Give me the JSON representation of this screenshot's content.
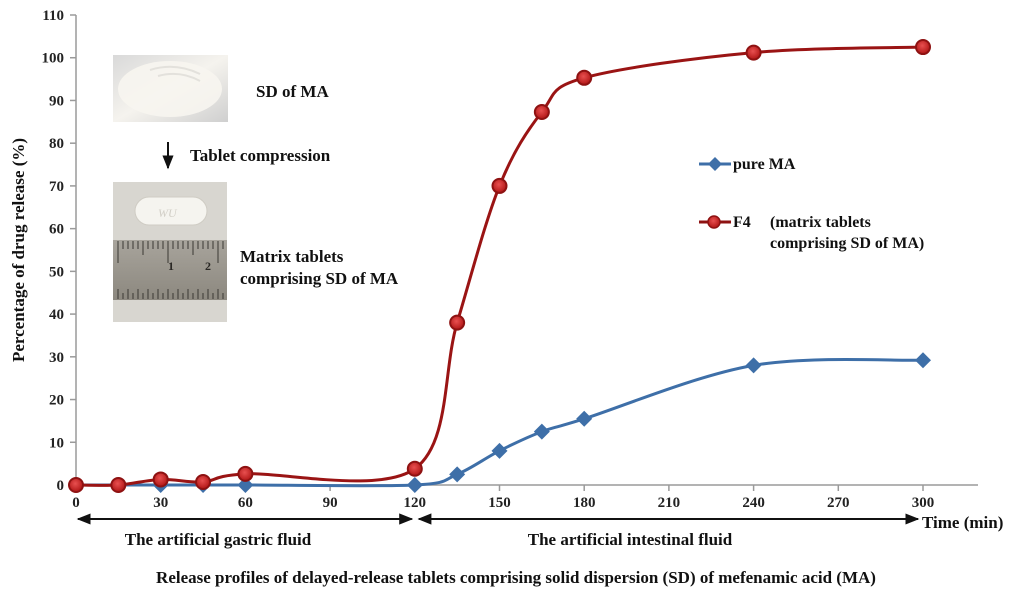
{
  "chart_data": {
    "type": "line",
    "title": "Release profiles of delayed-release tablets comprising solid dispersion (SD) of mefenamic acid (MA)",
    "xlabel": "Time (min)",
    "ylabel": "Percentage of drug release (%)",
    "xlim": [
      0,
      300
    ],
    "ylim": [
      0,
      110
    ],
    "xticks": [
      0,
      30,
      60,
      90,
      120,
      150,
      180,
      210,
      240,
      270,
      300
    ],
    "yticks": [
      0,
      10,
      20,
      30,
      40,
      50,
      60,
      70,
      80,
      90,
      100,
      110
    ],
    "grid": false,
    "legend_position": "right",
    "series": [
      {
        "name": "pure MA",
        "color": "#3e6fa8",
        "marker": "diamond",
        "x": [
          0,
          15,
          30,
          45,
          60,
          120,
          135,
          150,
          165,
          180,
          240,
          300
        ],
        "y": [
          0,
          0,
          0,
          0,
          0,
          0,
          2.5,
          8,
          12.5,
          15.5,
          28,
          29.2
        ]
      },
      {
        "name": "F4",
        "name_detail": "(matrix tablets comprising SD of MA)",
        "name_detail_lines": [
          "(matrix tablets",
          "comprising SD of MA)"
        ],
        "color": "#b81c1c",
        "marker": "circle",
        "x": [
          0,
          15,
          30,
          45,
          60,
          120,
          135,
          150,
          165,
          180,
          240,
          300
        ],
        "y": [
          0,
          0,
          1.3,
          0.7,
          2.6,
          3.8,
          38,
          70,
          87.3,
          95.3,
          101.2,
          102.5
        ]
      }
    ],
    "annotations": {
      "phase_gastric": "The artificial gastric fluid",
      "phase_intestinal": "The artificial intestinal fluid",
      "powder_label": "SD of MA",
      "process_label": "Tablet compression",
      "tablet_label_lines": [
        "Matrix tablets",
        "comprising SD of MA"
      ]
    }
  }
}
